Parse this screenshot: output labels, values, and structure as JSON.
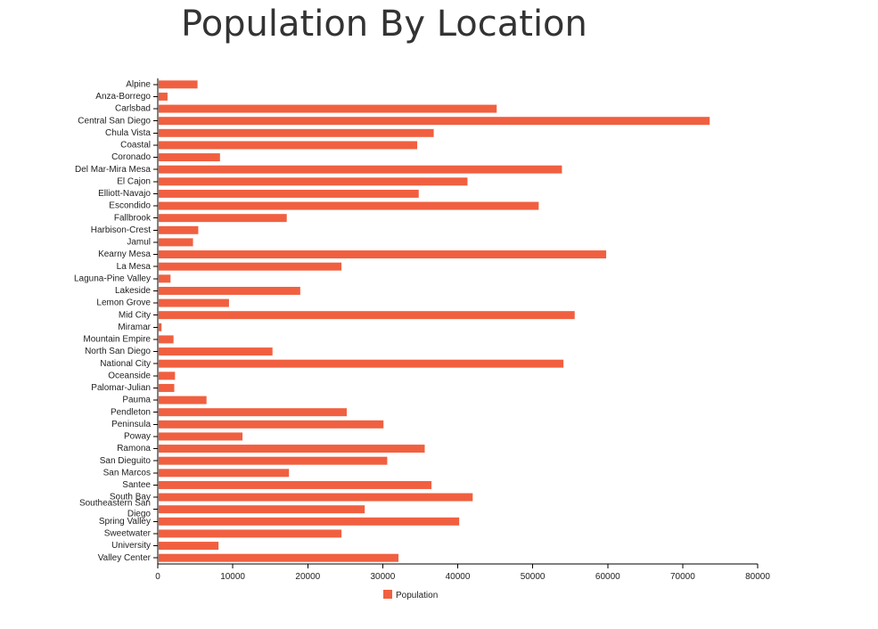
{
  "colors": {
    "bar": "#f06040",
    "title": "#333333",
    "axis": "#000000"
  },
  "chart_data": {
    "type": "bar",
    "orientation": "horizontal",
    "title": "Population By Location",
    "xlabel": "",
    "ylabel": "",
    "xlim": [
      0,
      80000
    ],
    "x_ticks": [
      0,
      10000,
      20000,
      30000,
      40000,
      50000,
      60000,
      70000,
      80000
    ],
    "grid": false,
    "legend_position": "bottom-center",
    "categories": [
      "Alpine",
      "Anza-Borrego",
      "Carlsbad",
      "Central San Diego",
      "Chula Vista",
      "Coastal",
      "Coronado",
      "Del Mar-Mira Mesa",
      "El Cajon",
      "Elliott-Navajo",
      "Escondido",
      "Fallbrook",
      "Harbison-Crest",
      "Jamul",
      "Kearny Mesa",
      "La Mesa",
      "Laguna-Pine Valley",
      "Lakeside",
      "Lemon Grove",
      "Mid City",
      "Miramar",
      "Mountain Empire",
      "North San Diego",
      "National City",
      "Oceanside",
      "Palomar-Julian",
      "Pauma",
      "Pendleton",
      "Peninsula",
      "Poway",
      "Ramona",
      "San Dieguito",
      "San Marcos",
      "Santee",
      "South Bay",
      "Southeastern San Diego",
      "Spring Valley",
      "Sweetwater",
      "University",
      "Valley Center"
    ],
    "series": [
      {
        "name": "Population",
        "values": [
          5300,
          1300,
          45200,
          73600,
          36800,
          34600,
          8300,
          53900,
          41300,
          34800,
          50800,
          17200,
          5400,
          4700,
          59800,
          24500,
          1700,
          19000,
          9500,
          55600,
          500,
          2100,
          15300,
          54100,
          2300,
          2200,
          6500,
          25200,
          30100,
          11300,
          35600,
          30600,
          17500,
          36500,
          42000,
          27600,
          40200,
          24500,
          8100,
          32100
        ]
      }
    ]
  }
}
